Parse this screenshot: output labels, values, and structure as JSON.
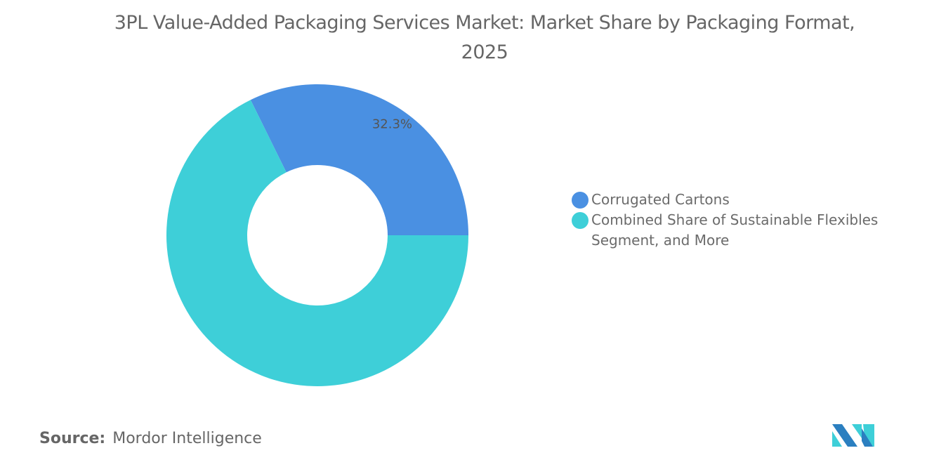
{
  "chart_data": {
    "type": "pie",
    "style": "donut",
    "title": "3PL Value-Added Packaging Services Market: Market Share by Packaging Format, 2025",
    "slices": [
      {
        "label": "Corrugated Cartons",
        "value": 32.3,
        "data_label": "32.3%",
        "color": "#4a90e2"
      },
      {
        "label": "Combined Share of Sustainable Flexibles Segment, and More",
        "value": 67.7,
        "data_label": "",
        "color": "#3ecfd8"
      }
    ],
    "legend_position": "right"
  },
  "source": {
    "label": "Source:",
    "value": "Mordor Intelligence"
  },
  "logo": {
    "text": "Mordor Intelligence"
  }
}
